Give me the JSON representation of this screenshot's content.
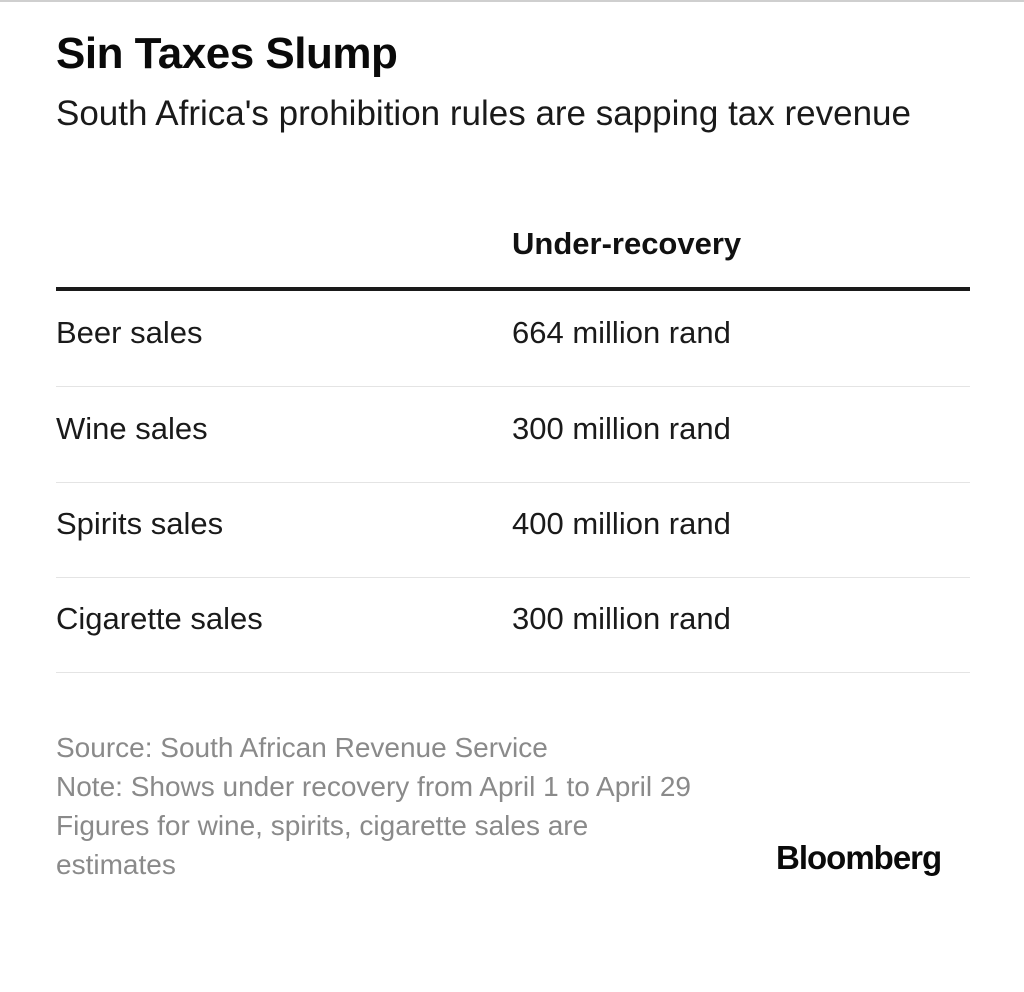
{
  "chart_data": {
    "type": "table",
    "title": "Sin Taxes Slump",
    "subtitle": "South Africa's prohibition rules are sapping tax revenue",
    "columns": [
      "",
      "Under-recovery"
    ],
    "rows": [
      {
        "label": "Beer sales",
        "value": "664 million rand"
      },
      {
        "label": "Wine sales",
        "value": "300 million rand"
      },
      {
        "label": "Spirits sales",
        "value": "400 million rand"
      },
      {
        "label": "Cigarette sales",
        "value": "300 million rand"
      }
    ],
    "values": [
      664,
      300,
      400,
      300
    ],
    "unit": "million rand",
    "source": "Source: South African Revenue Service",
    "note": "Note: Shows under recovery from April 1 to April 29",
    "footnote": "Figures for wine, spirits, cigarette sales are estimates",
    "brand": "Bloomberg"
  }
}
